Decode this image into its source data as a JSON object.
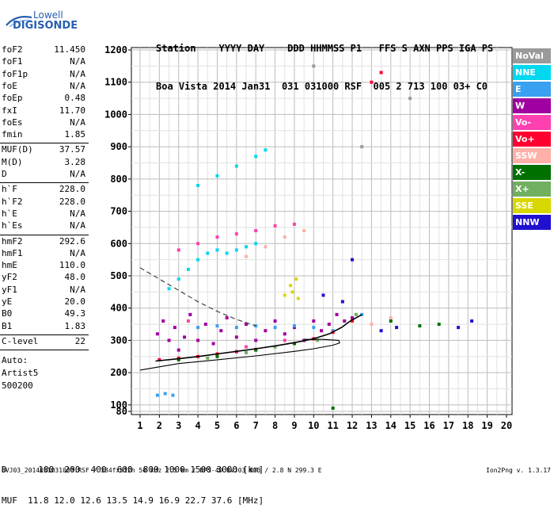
{
  "logo": {
    "line1": "Lowell",
    "line2": "DIGISONDE"
  },
  "header": {
    "line1": "Station    YYYY DAY    DDD HHMMSS P1   FFS S AXN PPS IGA PS",
    "line2": "Boa Vista 2014 Jan31  031 031000 RSF  005 2 713 100 03+ C0"
  },
  "params": {
    "group1": [
      [
        "foF2",
        "11.450"
      ],
      [
        "foF1",
        "N/A"
      ],
      [
        "foF1p",
        "N/A"
      ],
      [
        "foE",
        "N/A"
      ],
      [
        "foEp",
        "0.48"
      ],
      [
        "fxI",
        "11.70"
      ],
      [
        "foEs",
        "N/A"
      ],
      [
        "fmin",
        "1.85"
      ]
    ],
    "group2": [
      [
        "MUF(D)",
        "37.57"
      ],
      [
        "M(D)",
        "3.28"
      ],
      [
        "D",
        "N/A"
      ]
    ],
    "group3": [
      [
        "h`F",
        "228.0"
      ],
      [
        "h`F2",
        "228.0"
      ],
      [
        "h`E",
        "N/A"
      ],
      [
        "h`Es",
        "N/A"
      ]
    ],
    "group4": [
      [
        "hmF2",
        "292.6"
      ],
      [
        "hmF1",
        "N/A"
      ],
      [
        "hmE",
        "110.0"
      ],
      [
        "yF2",
        "48.0"
      ],
      [
        "yF1",
        "N/A"
      ],
      [
        "yE",
        "20.0"
      ],
      [
        "B0",
        "49.3"
      ],
      [
        "B1",
        "1.83"
      ]
    ],
    "group5": [
      [
        "C-level",
        "22"
      ]
    ],
    "auto": [
      "Auto:",
      "Artist5",
      "500200"
    ]
  },
  "legend": [
    {
      "label": "NoVal",
      "color": "#9a9a9a"
    },
    {
      "label": "NNE",
      "color": "#00d8f0"
    },
    {
      "label": "E",
      "color": "#3aa0f0"
    },
    {
      "label": "W",
      "color": "#a000a0"
    },
    {
      "label": "Vo-",
      "color": "#ff40b0"
    },
    {
      "label": "Vo+",
      "color": "#ff0030"
    },
    {
      "label": "SSW",
      "color": "#ffb0a8"
    },
    {
      "label": "X-",
      "color": "#007000"
    },
    {
      "label": "X+",
      "color": "#70b060"
    },
    {
      "label": "SSE",
      "color": "#d8d800"
    },
    {
      "label": "NNW",
      "color": "#2010d0"
    }
  ],
  "bottom": {
    "d_line": "D      100  200  400  600  800 1000 1500 3000 [km]",
    "muf_line": "MUF  11.8 12.0 12.6 13.5 14.9 16.9 22.7 37.6 [MHz]"
  },
  "footer": {
    "left": "BVJ03_2014031031000.RSF / 384fx512h 50 kHz 2.5 km / DPS-4D BVJ03 003 / 2.8 N 299.3 E",
    "right": "Ion2Png v. 1.3.17"
  },
  "chart_data": {
    "type": "scatter",
    "xlim": [
      1,
      20
    ],
    "ylim": [
      80,
      1200
    ],
    "x_ticks": [
      1,
      2,
      3,
      4,
      5,
      6,
      7,
      8,
      9,
      10,
      11,
      12,
      13,
      14,
      15,
      16,
      17,
      18,
      19,
      20
    ],
    "y_ticks": [
      80,
      100,
      200,
      300,
      400,
      500,
      600,
      700,
      800,
      900,
      1000,
      1100,
      1200
    ],
    "grid": true,
    "series": [
      {
        "name": "W",
        "color": "#a000a0",
        "points": [
          [
            1.9,
            320
          ],
          [
            2.2,
            360
          ],
          [
            2.5,
            300
          ],
          [
            2.8,
            340
          ],
          [
            3.0,
            270
          ],
          [
            3.3,
            310
          ],
          [
            3.6,
            380
          ],
          [
            4.0,
            300
          ],
          [
            4.4,
            350
          ],
          [
            4.8,
            290
          ],
          [
            5.2,
            330
          ],
          [
            5.5,
            370
          ],
          [
            6.0,
            310
          ],
          [
            6.5,
            350
          ],
          [
            7.0,
            300
          ],
          [
            7.5,
            330
          ],
          [
            8.0,
            360
          ],
          [
            8.5,
            320
          ],
          [
            9.0,
            340
          ],
          [
            9.5,
            300
          ],
          [
            10.0,
            360
          ],
          [
            10.4,
            330
          ],
          [
            10.8,
            350
          ],
          [
            11.2,
            380
          ],
          [
            11.6,
            360
          ],
          [
            12.0,
            370
          ]
        ]
      },
      {
        "name": "NNE",
        "color": "#00d8f0",
        "points": [
          [
            2.5,
            460
          ],
          [
            3.0,
            490
          ],
          [
            3.5,
            520
          ],
          [
            4.0,
            550
          ],
          [
            4.5,
            570
          ],
          [
            5.0,
            580
          ],
          [
            5.5,
            570
          ],
          [
            6.0,
            580
          ],
          [
            6.5,
            590
          ],
          [
            7.0,
            600
          ],
          [
            4.0,
            780
          ],
          [
            5.0,
            810
          ],
          [
            6.0,
            840
          ],
          [
            7.0,
            870
          ],
          [
            7.5,
            890
          ]
        ]
      },
      {
        "name": "E",
        "color": "#3aa0f0",
        "points": [
          [
            4.0,
            340
          ],
          [
            5.0,
            345
          ],
          [
            6.0,
            340
          ],
          [
            7.0,
            345
          ],
          [
            8.0,
            340
          ],
          [
            9.0,
            345
          ],
          [
            10.0,
            340
          ],
          [
            11.0,
            330
          ],
          [
            12.5,
            380
          ],
          [
            1.9,
            130
          ],
          [
            2.3,
            135
          ],
          [
            2.7,
            130
          ]
        ]
      },
      {
        "name": "Vo-",
        "color": "#ff40b0",
        "points": [
          [
            3.0,
            580
          ],
          [
            4.0,
            600
          ],
          [
            5.0,
            620
          ],
          [
            6.0,
            630
          ],
          [
            7.0,
            640
          ],
          [
            8.0,
            655
          ],
          [
            9.0,
            660
          ],
          [
            3.5,
            360
          ],
          [
            6.5,
            280
          ],
          [
            8.5,
            300
          ]
        ]
      },
      {
        "name": "Vo+",
        "color": "#ff0030",
        "points": [
          [
            2.0,
            240
          ],
          [
            3.0,
            245
          ],
          [
            4.0,
            250
          ],
          [
            5.0,
            258
          ],
          [
            6.0,
            265
          ],
          [
            7.0,
            272
          ],
          [
            8.0,
            280
          ],
          [
            9.0,
            290
          ],
          [
            10.0,
            305
          ],
          [
            11.0,
            325
          ],
          [
            12.0,
            360
          ],
          [
            13.0,
            1100
          ],
          [
            13.5,
            1130
          ]
        ]
      },
      {
        "name": "SSW",
        "color": "#ffb0a8",
        "points": [
          [
            6.5,
            560
          ],
          [
            7.5,
            590
          ],
          [
            8.5,
            620
          ],
          [
            9.5,
            640
          ],
          [
            13.0,
            350
          ],
          [
            14.0,
            370
          ]
        ]
      },
      {
        "name": "X-",
        "color": "#007000",
        "points": [
          [
            3.0,
            240
          ],
          [
            5.0,
            250
          ],
          [
            7.0,
            270
          ],
          [
            9.0,
            290
          ],
          [
            11.0,
            90
          ],
          [
            14.0,
            360
          ],
          [
            15.5,
            345
          ],
          [
            16.5,
            350
          ]
        ]
      },
      {
        "name": "X+",
        "color": "#70b060",
        "points": [
          [
            4.5,
            245
          ],
          [
            6.5,
            262
          ],
          [
            8.0,
            280
          ],
          [
            10.2,
            300
          ],
          [
            12.2,
            380
          ]
        ]
      },
      {
        "name": "SSE",
        "color": "#d8d800",
        "points": [
          [
            8.5,
            440
          ],
          [
            8.8,
            470
          ],
          [
            9.1,
            490
          ],
          [
            8.9,
            450
          ],
          [
            9.2,
            430
          ]
        ]
      },
      {
        "name": "NNW",
        "color": "#2010d0",
        "points": [
          [
            10.5,
            440
          ],
          [
            11.5,
            420
          ],
          [
            12.0,
            550
          ],
          [
            13.5,
            330
          ],
          [
            14.3,
            340
          ],
          [
            17.5,
            340
          ],
          [
            18.2,
            360
          ]
        ]
      },
      {
        "name": "NoVal",
        "color": "#9a9a9a",
        "points": [
          [
            10.0,
            1150
          ],
          [
            12.5,
            900
          ],
          [
            15.0,
            1050
          ]
        ]
      }
    ],
    "curves": [
      {
        "name": "profile",
        "color": "#000000",
        "style": "solid",
        "points": [
          [
            1.8,
            236
          ],
          [
            3,
            243
          ],
          [
            4,
            250
          ],
          [
            5,
            258
          ],
          [
            6,
            266
          ],
          [
            7,
            274
          ],
          [
            8,
            283
          ],
          [
            9,
            293
          ],
          [
            10,
            305
          ],
          [
            10.8,
            320
          ],
          [
            11.45,
            340
          ],
          [
            11.9,
            360
          ],
          [
            12.5,
            380
          ]
        ]
      },
      {
        "name": "lower-bound",
        "color": "#000000",
        "style": "solid",
        "points": [
          [
            1,
            208
          ],
          [
            3,
            228
          ],
          [
            5,
            240
          ],
          [
            7,
            252
          ],
          [
            9,
            266
          ],
          [
            10,
            274
          ],
          [
            11,
            285
          ],
          [
            11.35,
            292
          ],
          [
            11.3,
            300
          ],
          [
            10.5,
            303
          ],
          [
            9.5,
            303
          ]
        ]
      },
      {
        "name": "muf-dashed",
        "color": "#333333",
        "style": "dashed",
        "points": [
          [
            1,
            525
          ],
          [
            2,
            490
          ],
          [
            3,
            455
          ],
          [
            4,
            420
          ],
          [
            5,
            390
          ],
          [
            6,
            365
          ],
          [
            7,
            345
          ]
        ]
      }
    ]
  }
}
